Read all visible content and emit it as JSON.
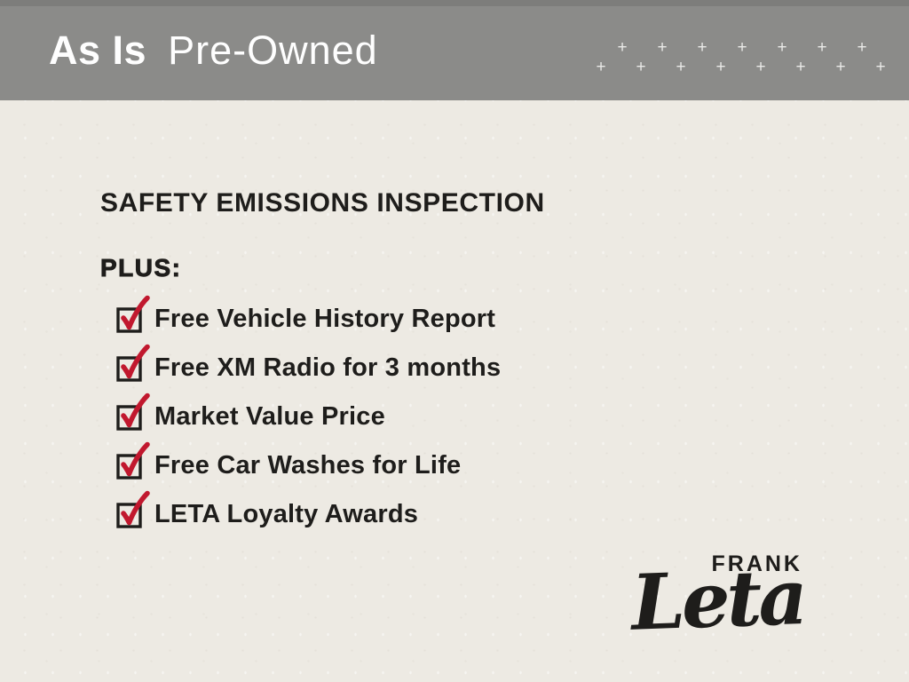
{
  "slide": {
    "header": {
      "title_primary": "As Is",
      "title_secondary": "Pre-Owned",
      "plus_glyph": "+",
      "plus_rows": [
        7,
        8
      ]
    },
    "body": {
      "heading": "SAFETY EMISSIONS INSPECTION",
      "subheading": "PLUS:",
      "checklist": [
        "Free Vehicle History Report",
        "Free XM Radio for 3 months",
        "Market Value Price",
        "Free Car Washes for Life",
        "LETA Loyalty Awards"
      ]
    },
    "logo": {
      "top_text": "FRANK",
      "script_text": "Leta"
    },
    "colors": {
      "header_bg": "#8b8b89",
      "paper_bg": "#edeae3",
      "ink": "#1e1d1b",
      "check_red": "#c1182e",
      "plus_color": "#e9e9e7",
      "title_color": "#fefefe"
    }
  }
}
